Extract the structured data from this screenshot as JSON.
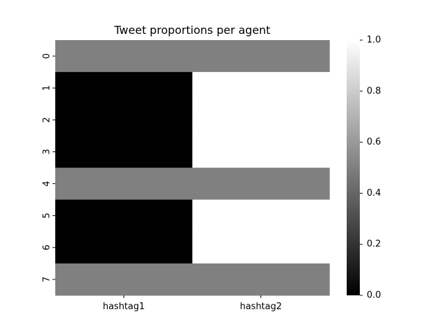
{
  "chart_data": {
    "type": "heatmap",
    "title": "Tweet proportions per agent",
    "xlabel": "",
    "ylabel": "",
    "x_categories": [
      "hashtag1",
      "hashtag2"
    ],
    "y_categories": [
      "0",
      "1",
      "2",
      "3",
      "4",
      "5",
      "6",
      "7"
    ],
    "values": [
      [
        0.5,
        0.5
      ],
      [
        0.0,
        1.0
      ],
      [
        0.0,
        1.0
      ],
      [
        0.0,
        1.0
      ],
      [
        0.5,
        0.5
      ],
      [
        0.0,
        1.0
      ],
      [
        0.0,
        1.0
      ],
      [
        0.5,
        0.5
      ]
    ],
    "colormap": "gray",
    "vmin": 0.0,
    "vmax": 1.0,
    "colorbar": {
      "ticks": [
        0.0,
        0.2,
        0.4,
        0.6,
        0.8,
        1.0
      ],
      "tick_labels": [
        "0.0",
        "0.2",
        "0.4",
        "0.6",
        "0.8",
        "1.0"
      ]
    },
    "grid": false
  }
}
